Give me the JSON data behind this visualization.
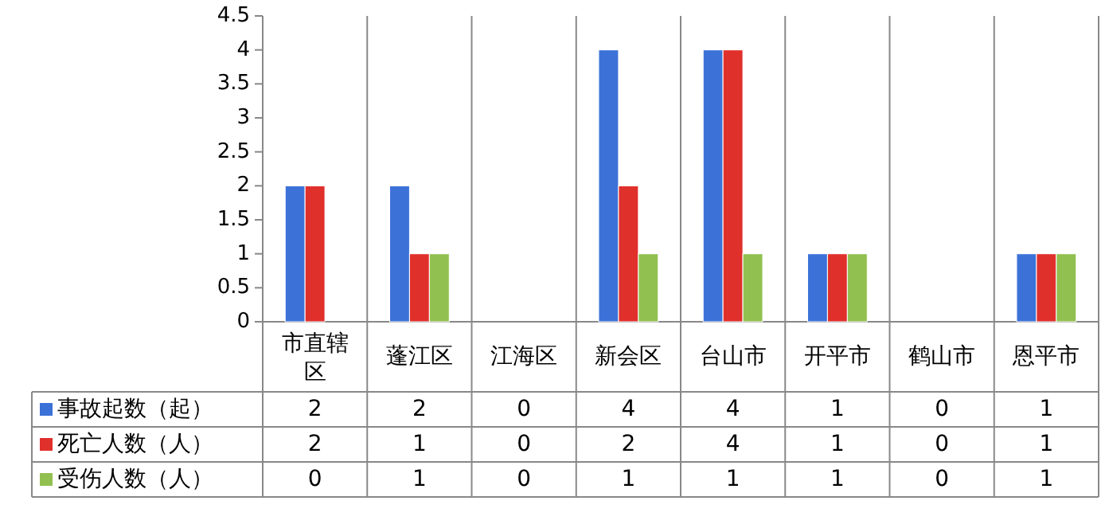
{
  "chart_data": {
    "type": "bar",
    "categories": [
      "市直辖区",
      "蓬江区",
      "江海区",
      "新会区",
      "台山市",
      "开平市",
      "鹤山市",
      "恩平市"
    ],
    "series": [
      {
        "name": "事故起数（起）",
        "color": "#3c72d8",
        "values": [
          2,
          2,
          0,
          4,
          4,
          1,
          0,
          1
        ]
      },
      {
        "name": "死亡人数（人）",
        "color": "#e0302c",
        "values": [
          2,
          1,
          0,
          2,
          4,
          1,
          0,
          1
        ]
      },
      {
        "name": "受伤人数（人）",
        "color": "#92c050",
        "values": [
          0,
          1,
          0,
          1,
          1,
          1,
          0,
          1
        ]
      }
    ],
    "ylim": [
      0,
      4.5
    ],
    "yticks": [
      0,
      0.5,
      1,
      1.5,
      2,
      2.5,
      3,
      3.5,
      4,
      4.5
    ],
    "data_labels": true,
    "legend": "bottom",
    "grid": false
  }
}
